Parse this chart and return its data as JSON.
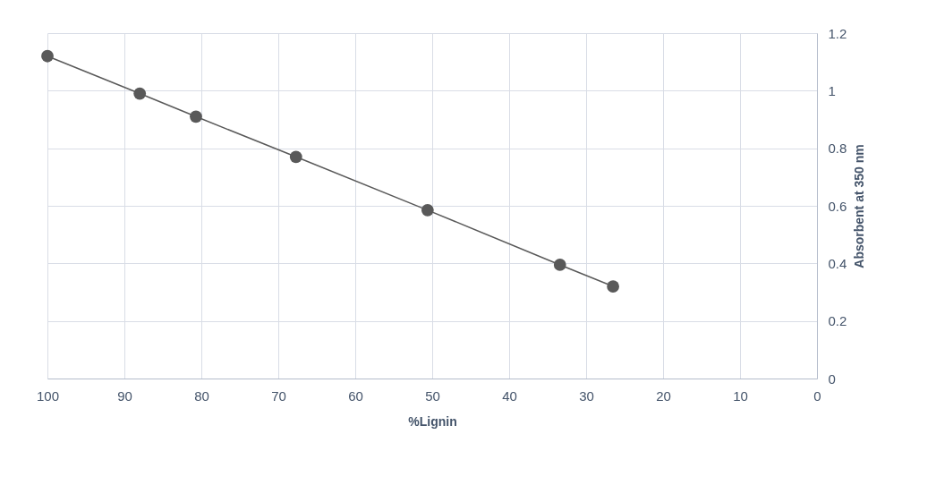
{
  "chart_data": {
    "type": "line",
    "xlabel": "%Lignin",
    "ylabel": "Absorbent  at  350 nm",
    "x": [
      100,
      88,
      80.7,
      67.7,
      50.6,
      33.4,
      26.5
    ],
    "series": [
      {
        "color": "#595959",
        "values": [
          1.12,
          0.99,
          0.91,
          0.77,
          0.585,
          0.395,
          0.32
        ]
      }
    ],
    "xlim": [
      100,
      0
    ],
    "xticks": [
      100,
      90,
      80,
      70,
      60,
      50,
      40,
      30,
      20,
      10,
      0
    ],
    "ylim": [
      0,
      1.2
    ],
    "yticks": [
      0,
      0.2,
      0.4,
      0.6,
      0.8,
      1,
      1.2
    ],
    "grid": true,
    "marker": "circle",
    "line_style": "solid"
  }
}
